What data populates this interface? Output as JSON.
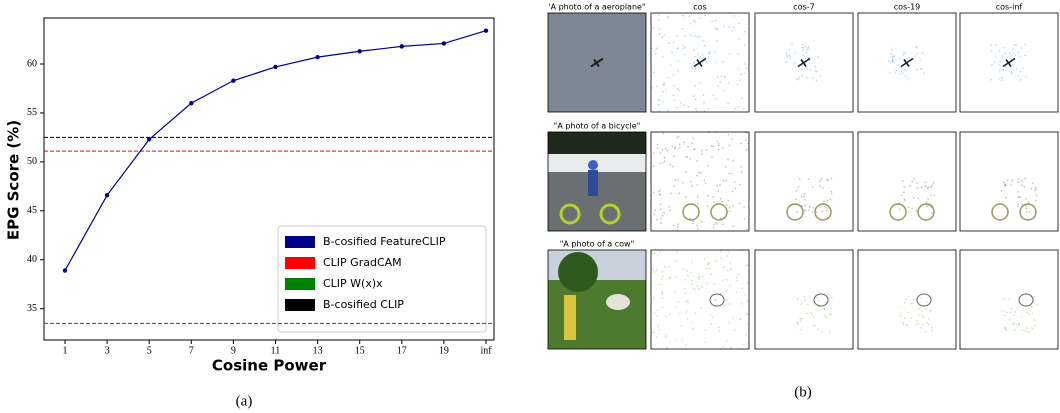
{
  "chart_data": {
    "type": "line",
    "caption": "(a)",
    "x_label": "Cosine Power",
    "y_label": "EPG Score (%)",
    "categories": [
      "1",
      "3",
      "5",
      "7",
      "9",
      "11",
      "13",
      "15",
      "17",
      "19",
      "inf"
    ],
    "series": [
      {
        "name": "B-cosified FeatureCLIP",
        "color": "#00008b",
        "values": [
          38.9,
          46.6,
          52.3,
          56.0,
          58.3,
          59.7,
          60.7,
          61.3,
          61.8,
          62.1,
          63.4
        ]
      }
    ],
    "reference_lines": [
      {
        "name": "CLIP GradCAM",
        "color": "#ff0000",
        "value": 51.1
      },
      {
        "name": "CLIP W(x)x",
        "color": "#008000",
        "value": 33.5
      },
      {
        "name": "B-cosified CLIP",
        "color": "#000000",
        "value": 52.5
      }
    ],
    "ylim": [
      31.8,
      64.7
    ],
    "yticks": [
      35,
      40,
      45,
      50,
      55,
      60
    ],
    "legend": "lower right"
  },
  "panel_b": {
    "caption": "(b)",
    "column_headers": [
      "cos",
      "cos-7",
      "cos-19",
      "cos-inf"
    ],
    "prompts": [
      "'A photo of a aeroplane\"",
      "\"A photo of a bicycle\"",
      "\"A photo of a cow\""
    ]
  }
}
